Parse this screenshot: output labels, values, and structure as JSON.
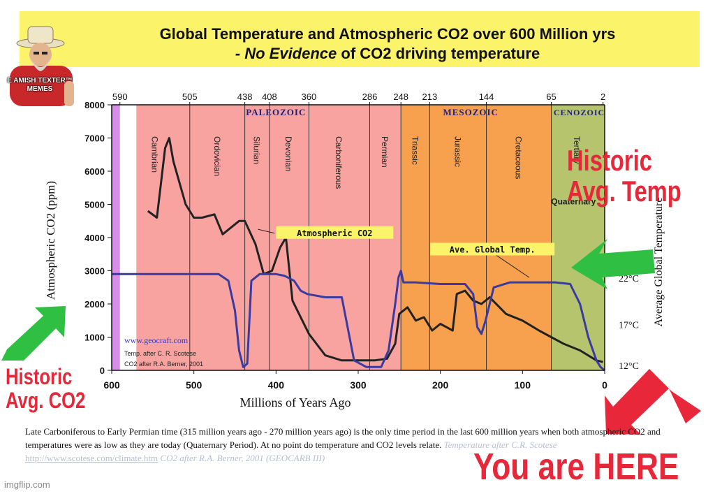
{
  "header": {
    "title_line1": "Global Temperature and Atmospheric CO2 over 600 Million yrs",
    "title_line2_prefix": "- ",
    "title_line2_emph": "No Evidence",
    "title_line2_suffix": " of CO2 driving temperature"
  },
  "logo": {
    "text": "E AMISH TEXTER™ MEMES"
  },
  "chart_data": {
    "type": "line",
    "title": "",
    "xlabel": "Millions of Years Ago",
    "ylabel": "Atmospheric CO2 (ppm)",
    "ylabel_right": "Average Global Temperature",
    "xlim": [
      600,
      0
    ],
    "ylim": [
      0,
      8000
    ],
    "x_ticks": [
      600,
      500,
      400,
      300,
      200,
      100,
      0
    ],
    "y_ticks": [
      0,
      1000,
      2000,
      3000,
      4000,
      5000,
      6000,
      7000,
      8000
    ],
    "y_tick_labels": [
      "0",
      "1000",
      "2000",
      "3000",
      "4000",
      "5000",
      "6000",
      "7000",
      "8000"
    ],
    "right_ticks": [
      {
        "label": "22°C",
        "co2_equiv": 2800
      },
      {
        "label": "17°C",
        "co2_equiv": 1400
      },
      {
        "label": "12°C",
        "co2_equiv": 0
      }
    ],
    "top_ticks": [
      590,
      505,
      438,
      408,
      360,
      286,
      248,
      213,
      144,
      65,
      2
    ],
    "eras": [
      {
        "label": "PALEOZOIC",
        "from": 570,
        "to": 248,
        "color": "#f8a3a0"
      },
      {
        "label": "MESOZOIC",
        "from": 248,
        "to": 65,
        "color": "#f7a14e"
      },
      {
        "label": "CENOZOIC",
        "from": 65,
        "to": 0,
        "color": "#b6c46e"
      }
    ],
    "precambrian": {
      "from": 600,
      "to": 590,
      "color": "#d88ee8"
    },
    "periods": [
      {
        "label": "Cambrian",
        "mid": 547
      },
      {
        "label": "Ordovician",
        "mid": 471
      },
      {
        "label": "Silurian",
        "mid": 423
      },
      {
        "label": "Devonian",
        "mid": 384
      },
      {
        "label": "Carboniferous",
        "mid": 323
      },
      {
        "label": "Permian",
        "mid": 267
      },
      {
        "label": "Triassic",
        "mid": 230
      },
      {
        "label": "Jurassic",
        "mid": 178
      },
      {
        "label": "Cretaceous",
        "mid": 104
      },
      {
        "label": "Tertiary",
        "mid": 33
      }
    ],
    "period_boundaries": [
      505,
      438,
      408,
      360,
      286,
      248,
      213,
      144,
      65
    ],
    "quaternary_label": "Quaternary",
    "series": [
      {
        "name": "Atmospheric CO2",
        "color": "#222222",
        "x": [
          556,
          545,
          535,
          530,
          525,
          510,
          500,
          490,
          475,
          465,
          455,
          445,
          438,
          425,
          415,
          405,
          395,
          388,
          380,
          360,
          340,
          320,
          300,
          280,
          265,
          255,
          250,
          240,
          230,
          220,
          210,
          200,
          185,
          180,
          170,
          160,
          150,
          140,
          120,
          100,
          80,
          65,
          50,
          30,
          10,
          2
        ],
        "values": [
          4800,
          4600,
          6700,
          7000,
          6300,
          5000,
          4600,
          4600,
          4700,
          4100,
          4300,
          4500,
          4500,
          3800,
          2900,
          3000,
          3700,
          4000,
          2100,
          1100,
          450,
          300,
          300,
          300,
          350,
          800,
          1700,
          1900,
          1500,
          1600,
          1200,
          1400,
          1200,
          2300,
          2400,
          2100,
          2000,
          2200,
          1700,
          1500,
          1200,
          1000,
          800,
          600,
          300,
          250
        ]
      },
      {
        "name": "Ave. Global Temp.",
        "color": "#3a3aa0",
        "x": [
          600,
          570,
          520,
          470,
          458,
          450,
          445,
          440,
          435,
          430,
          420,
          410,
          400,
          390,
          378,
          370,
          362,
          340,
          320,
          305,
          290,
          272,
          263,
          255,
          251,
          248,
          245,
          230,
          200,
          170,
          160,
          155,
          150,
          145,
          135,
          115,
          90,
          60,
          42,
          30,
          20,
          10,
          5,
          0
        ],
        "values": [
          2900,
          2900,
          2900,
          2900,
          2700,
          1800,
          600,
          100,
          200,
          2700,
          2900,
          2900,
          2900,
          2850,
          2700,
          2400,
          2300,
          2200,
          2200,
          300,
          100,
          100,
          600,
          2000,
          2800,
          3000,
          2650,
          2650,
          2600,
          2600,
          2300,
          1300,
          1100,
          1500,
          2500,
          2650,
          2650,
          2650,
          2600,
          2000,
          1000,
          300,
          100,
          0
        ]
      }
    ],
    "annotations": [
      {
        "text": "Atmospheric CO2",
        "x": 400,
        "y": 4300,
        "target_x": 422,
        "target_y": 4250
      },
      {
        "text": "Ave. Global Temp.",
        "x": 180,
        "y": 3800,
        "target_x": 92,
        "target_y": 2800
      }
    ],
    "source_notes": [
      "www.geocraft.com",
      "Temp. after C. R. Scotese",
      "CO2 after R.A. Berner, 2001"
    ],
    "grid": false,
    "legend": "none"
  },
  "overlays": {
    "historic_temp_line1": "Historic",
    "historic_temp_line2": "Avg. Temp",
    "historic_co2_line1": "Historic",
    "historic_co2_line2": "Avg. CO2",
    "you_are_here": "You are HERE",
    "arrow_color": "#2fc043",
    "red_arrow_color": "#e8283a"
  },
  "caption": {
    "text": "Late Carboniferous to Early Permian time (315 million years ago - 270 million years ago) is the only time period in the last 600 million years when both atmospheric CO2 and temperatures were as low as they are today (Quaternary Period). At no point do temperature and CO2 levels relate.",
    "faded_prefix": "Temperature after C.R. Scotese",
    "faded_link": "http://www.scotese.com/climate.htm",
    "faded_suffix": "CO2 after R.A. Berner, 2001 (GEOCARB III)"
  },
  "watermark": "imgflip.com"
}
